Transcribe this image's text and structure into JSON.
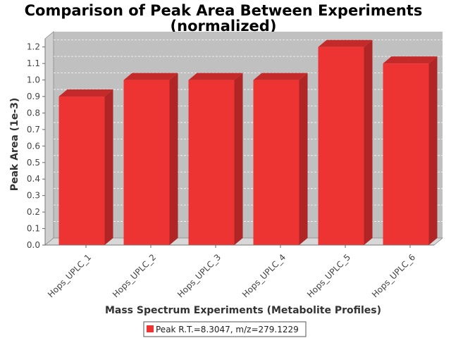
{
  "chart_data": {
    "type": "bar",
    "title": "Comparison of Peak Area Between Experiments",
    "subtitle": "(normalized)",
    "xlabel": "Mass Spectrum Experiments (Metabolite Profiles)",
    "ylabel": "Peak Area (1e-3)",
    "ylim": [
      0,
      1.25
    ],
    "yticks": [
      "0.0",
      "0.1",
      "0.2",
      "0.3",
      "0.4",
      "0.5",
      "0.6",
      "0.7",
      "0.8",
      "0.9",
      "1.0",
      "1.1",
      "1.2"
    ],
    "categories": [
      "Hops_UPLC_1",
      "Hops_UPLC_2",
      "Hops_UPLC_3",
      "Hops_UPLC_4",
      "Hops_UPLC_5",
      "Hops_UPLC_6"
    ],
    "series": [
      {
        "name": "Peak R.T.=8.3047, m/z=279.1229",
        "values": [
          0.9,
          1.0,
          1.0,
          1.0,
          1.2,
          1.1
        ]
      }
    ],
    "colors": {
      "bar_face": "#ee3333",
      "bar_top": "#c42a2a",
      "bar_side": "#b02525",
      "plot_background": "#c0c0c0",
      "plot_floor": "#d8d8d8",
      "plot_wall": "#d0d0d0"
    },
    "grid": true,
    "legend_position": "bottom"
  }
}
